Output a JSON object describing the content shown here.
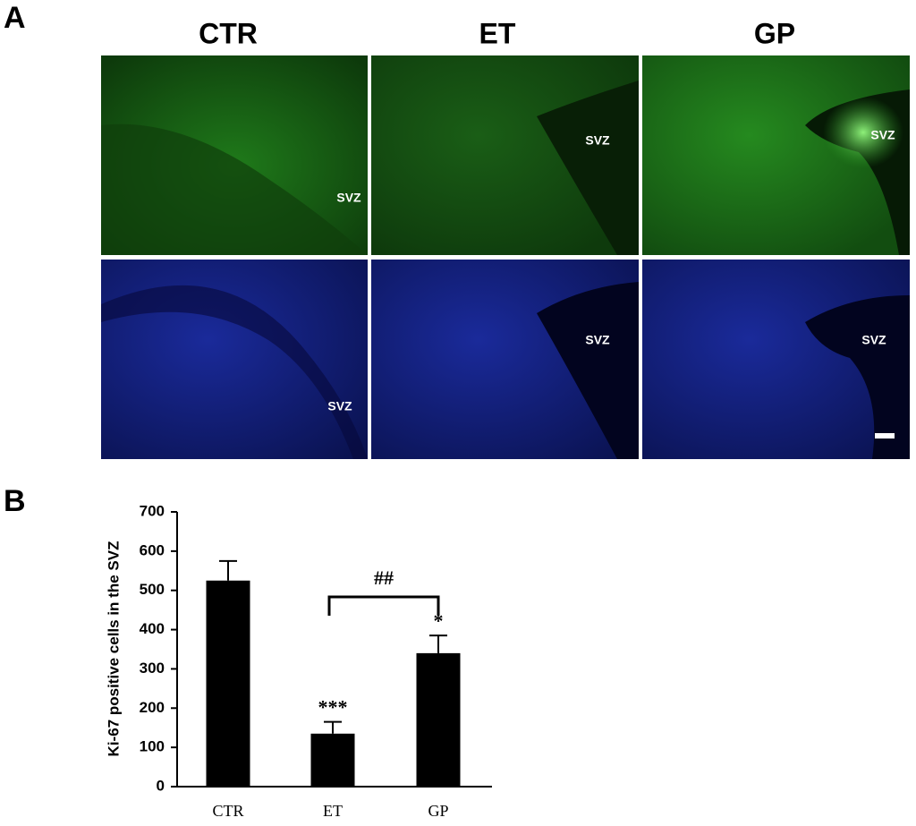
{
  "panel_a": {
    "label": "A",
    "columns": [
      "CTR",
      "ET",
      "GP"
    ],
    "region_labels": [
      [
        "SVZ",
        "SVZ",
        "SVZ"
      ],
      [
        "SVZ",
        "SVZ",
        "SVZ"
      ]
    ]
  },
  "chart_data": {
    "type": "bar",
    "panel_label": "B",
    "y_label": "Ki-67 positive cells in the SVZ",
    "categories": [
      "CTR",
      "ET",
      "GP"
    ],
    "values": [
      525,
      135,
      340
    ],
    "errors": [
      50,
      30,
      45
    ],
    "color": "#000000",
    "value_annotations": [
      null,
      "***",
      "*"
    ],
    "comparison_label": "##",
    "ylim": [
      0,
      700
    ],
    "yticks": [
      0,
      100,
      200,
      300,
      400,
      500,
      600,
      700
    ]
  }
}
